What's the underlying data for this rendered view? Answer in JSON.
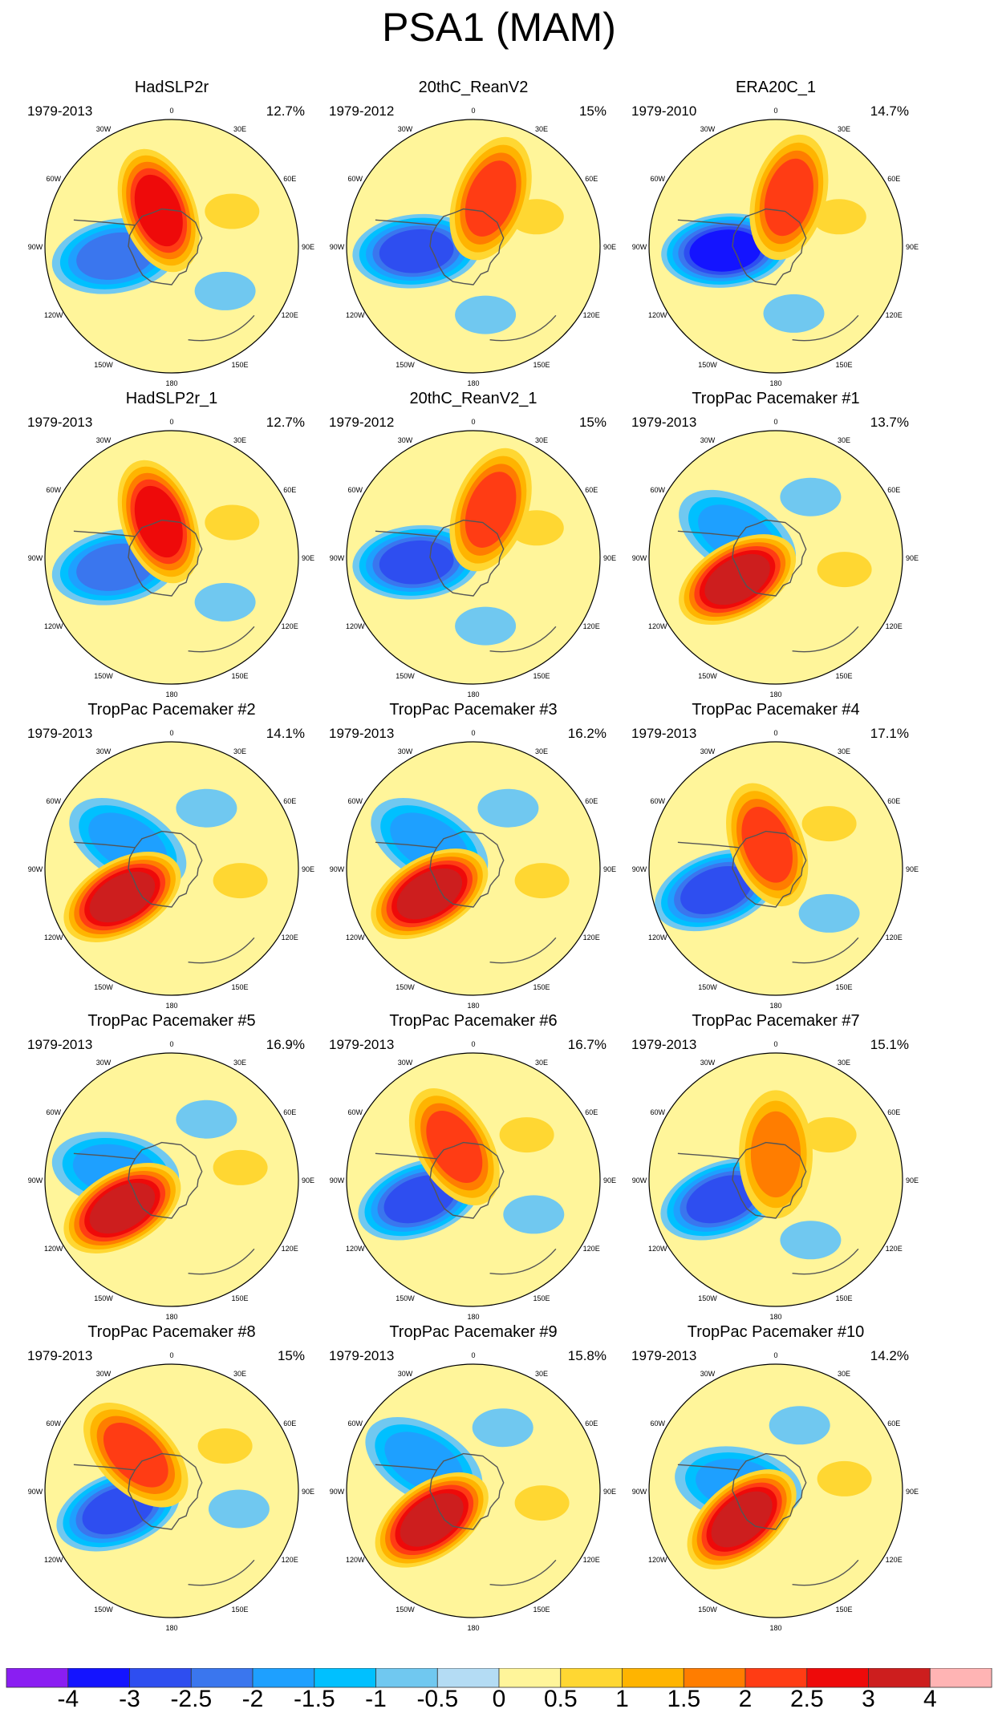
{
  "title": "PSA1 (MAM)",
  "icons": {
    "coastline": "coastline-icon"
  },
  "panels": [
    {
      "name": "HadSLP2r",
      "years": "1979-2013",
      "percent": "12.7%"
    },
    {
      "name": "20thC_ReanV2",
      "years": "1979-2012",
      "percent": "15%"
    },
    {
      "name": "ERA20C_1",
      "years": "1979-2010",
      "percent": "14.7%"
    },
    {
      "name": "HadSLP2r_1",
      "years": "1979-2013",
      "percent": "12.7%"
    },
    {
      "name": "20thC_ReanV2_1",
      "years": "1979-2012",
      "percent": "15%"
    },
    {
      "name": "TropPac Pacemaker #1",
      "years": "1979-2013",
      "percent": "13.7%"
    },
    {
      "name": "TropPac Pacemaker #2",
      "years": "1979-2013",
      "percent": "14.1%"
    },
    {
      "name": "TropPac Pacemaker #3",
      "years": "1979-2013",
      "percent": "16.2%"
    },
    {
      "name": "TropPac Pacemaker #4",
      "years": "1979-2013",
      "percent": "17.1%"
    },
    {
      "name": "TropPac Pacemaker #5",
      "years": "1979-2013",
      "percent": "16.9%"
    },
    {
      "name": "TropPac Pacemaker #6",
      "years": "1979-2013",
      "percent": "16.7%"
    },
    {
      "name": "TropPac Pacemaker #7",
      "years": "1979-2013",
      "percent": "15.1%"
    },
    {
      "name": "TropPac Pacemaker #8",
      "years": "1979-2013",
      "percent": "15%"
    },
    {
      "name": "TropPac Pacemaker #9",
      "years": "1979-2013",
      "percent": "15.8%"
    },
    {
      "name": "TropPac Pacemaker #10",
      "years": "1979-2013",
      "percent": "14.2%"
    }
  ],
  "chart_data": {
    "type": "heatmap",
    "title": "PSA1 (MAM)",
    "projection": "south polar stereographic",
    "longitude_labels": [
      "0",
      "30E",
      "60E",
      "90E",
      "120E",
      "150E",
      "180",
      "150W",
      "120W",
      "90W",
      "60W",
      "30W"
    ],
    "colorbar": {
      "levels": [
        "-4",
        "-3",
        "-2.5",
        "-2",
        "-1.5",
        "-1",
        "-0.5",
        "0",
        "0.5",
        "1",
        "1.5",
        "2",
        "2.5",
        "3",
        "4"
      ],
      "colors": [
        "#8a1ef2",
        "#1414ff",
        "#2e4ef0",
        "#3a76ee",
        "#1ea0ff",
        "#00c0ff",
        "#70c8f0",
        "#b4dcf4",
        "#fff59a",
        "#ffd732",
        "#ffb400",
        "#ff7d00",
        "#ff3c14",
        "#ee0a0a",
        "#cd1e1e",
        "#ffb4b4"
      ]
    },
    "panel_centers": [
      {
        "low": {
          "lon": -100,
          "dist": 0.45,
          "value": -2.0
        },
        "high": {
          "lon": -20,
          "dist": 0.3,
          "value": 2.5
        }
      },
      {
        "low": {
          "lon": -95,
          "dist": 0.45,
          "value": -2.5
        },
        "high": {
          "lon": 20,
          "dist": 0.4,
          "value": 2.0
        }
      },
      {
        "low": {
          "lon": -95,
          "dist": 0.4,
          "value": -3.0
        },
        "high": {
          "lon": 15,
          "dist": 0.4,
          "value": 2.0
        }
      },
      {
        "low": {
          "lon": -100,
          "dist": 0.45,
          "value": -2.0
        },
        "high": {
          "lon": -20,
          "dist": 0.3,
          "value": 2.5
        }
      },
      {
        "low": {
          "lon": -95,
          "dist": 0.45,
          "value": -2.5
        },
        "high": {
          "lon": 20,
          "dist": 0.4,
          "value": 2.0
        }
      },
      {
        "low": {
          "lon": -60,
          "dist": 0.35,
          "value": -1.5
        },
        "high": {
          "lon": -120,
          "dist": 0.35,
          "value": 3.0
        }
      },
      {
        "low": {
          "lon": -60,
          "dist": 0.4,
          "value": -1.5
        },
        "high": {
          "lon": -120,
          "dist": 0.45,
          "value": 3.0
        }
      },
      {
        "low": {
          "lon": -60,
          "dist": 0.4,
          "value": -1.5
        },
        "high": {
          "lon": -120,
          "dist": 0.4,
          "value": 3.0
        }
      },
      {
        "low": {
          "lon": -110,
          "dist": 0.5,
          "value": -2.5
        },
        "high": {
          "lon": -20,
          "dist": 0.2,
          "value": 2.0
        }
      },
      {
        "low": {
          "lon": -80,
          "dist": 0.45,
          "value": -1.5
        },
        "high": {
          "lon": -120,
          "dist": 0.45,
          "value": 3.0
        }
      },
      {
        "low": {
          "lon": -110,
          "dist": 0.45,
          "value": -2.5
        },
        "high": {
          "lon": -30,
          "dist": 0.3,
          "value": 2.0
        }
      },
      {
        "low": {
          "lon": -110,
          "dist": 0.45,
          "value": -2.5
        },
        "high": {
          "lon": 0,
          "dist": 0.2,
          "value": 1.5
        }
      },
      {
        "low": {
          "lon": -110,
          "dist": 0.45,
          "value": -2.5
        },
        "high": {
          "lon": -45,
          "dist": 0.4,
          "value": 2.0
        }
      },
      {
        "low": {
          "lon": -60,
          "dist": 0.45,
          "value": -1.5
        },
        "high": {
          "lon": -125,
          "dist": 0.4,
          "value": 3.0
        }
      },
      {
        "low": {
          "lon": -80,
          "dist": 0.3,
          "value": -1.5
        },
        "high": {
          "lon": -130,
          "dist": 0.35,
          "value": 3.0
        }
      }
    ]
  }
}
